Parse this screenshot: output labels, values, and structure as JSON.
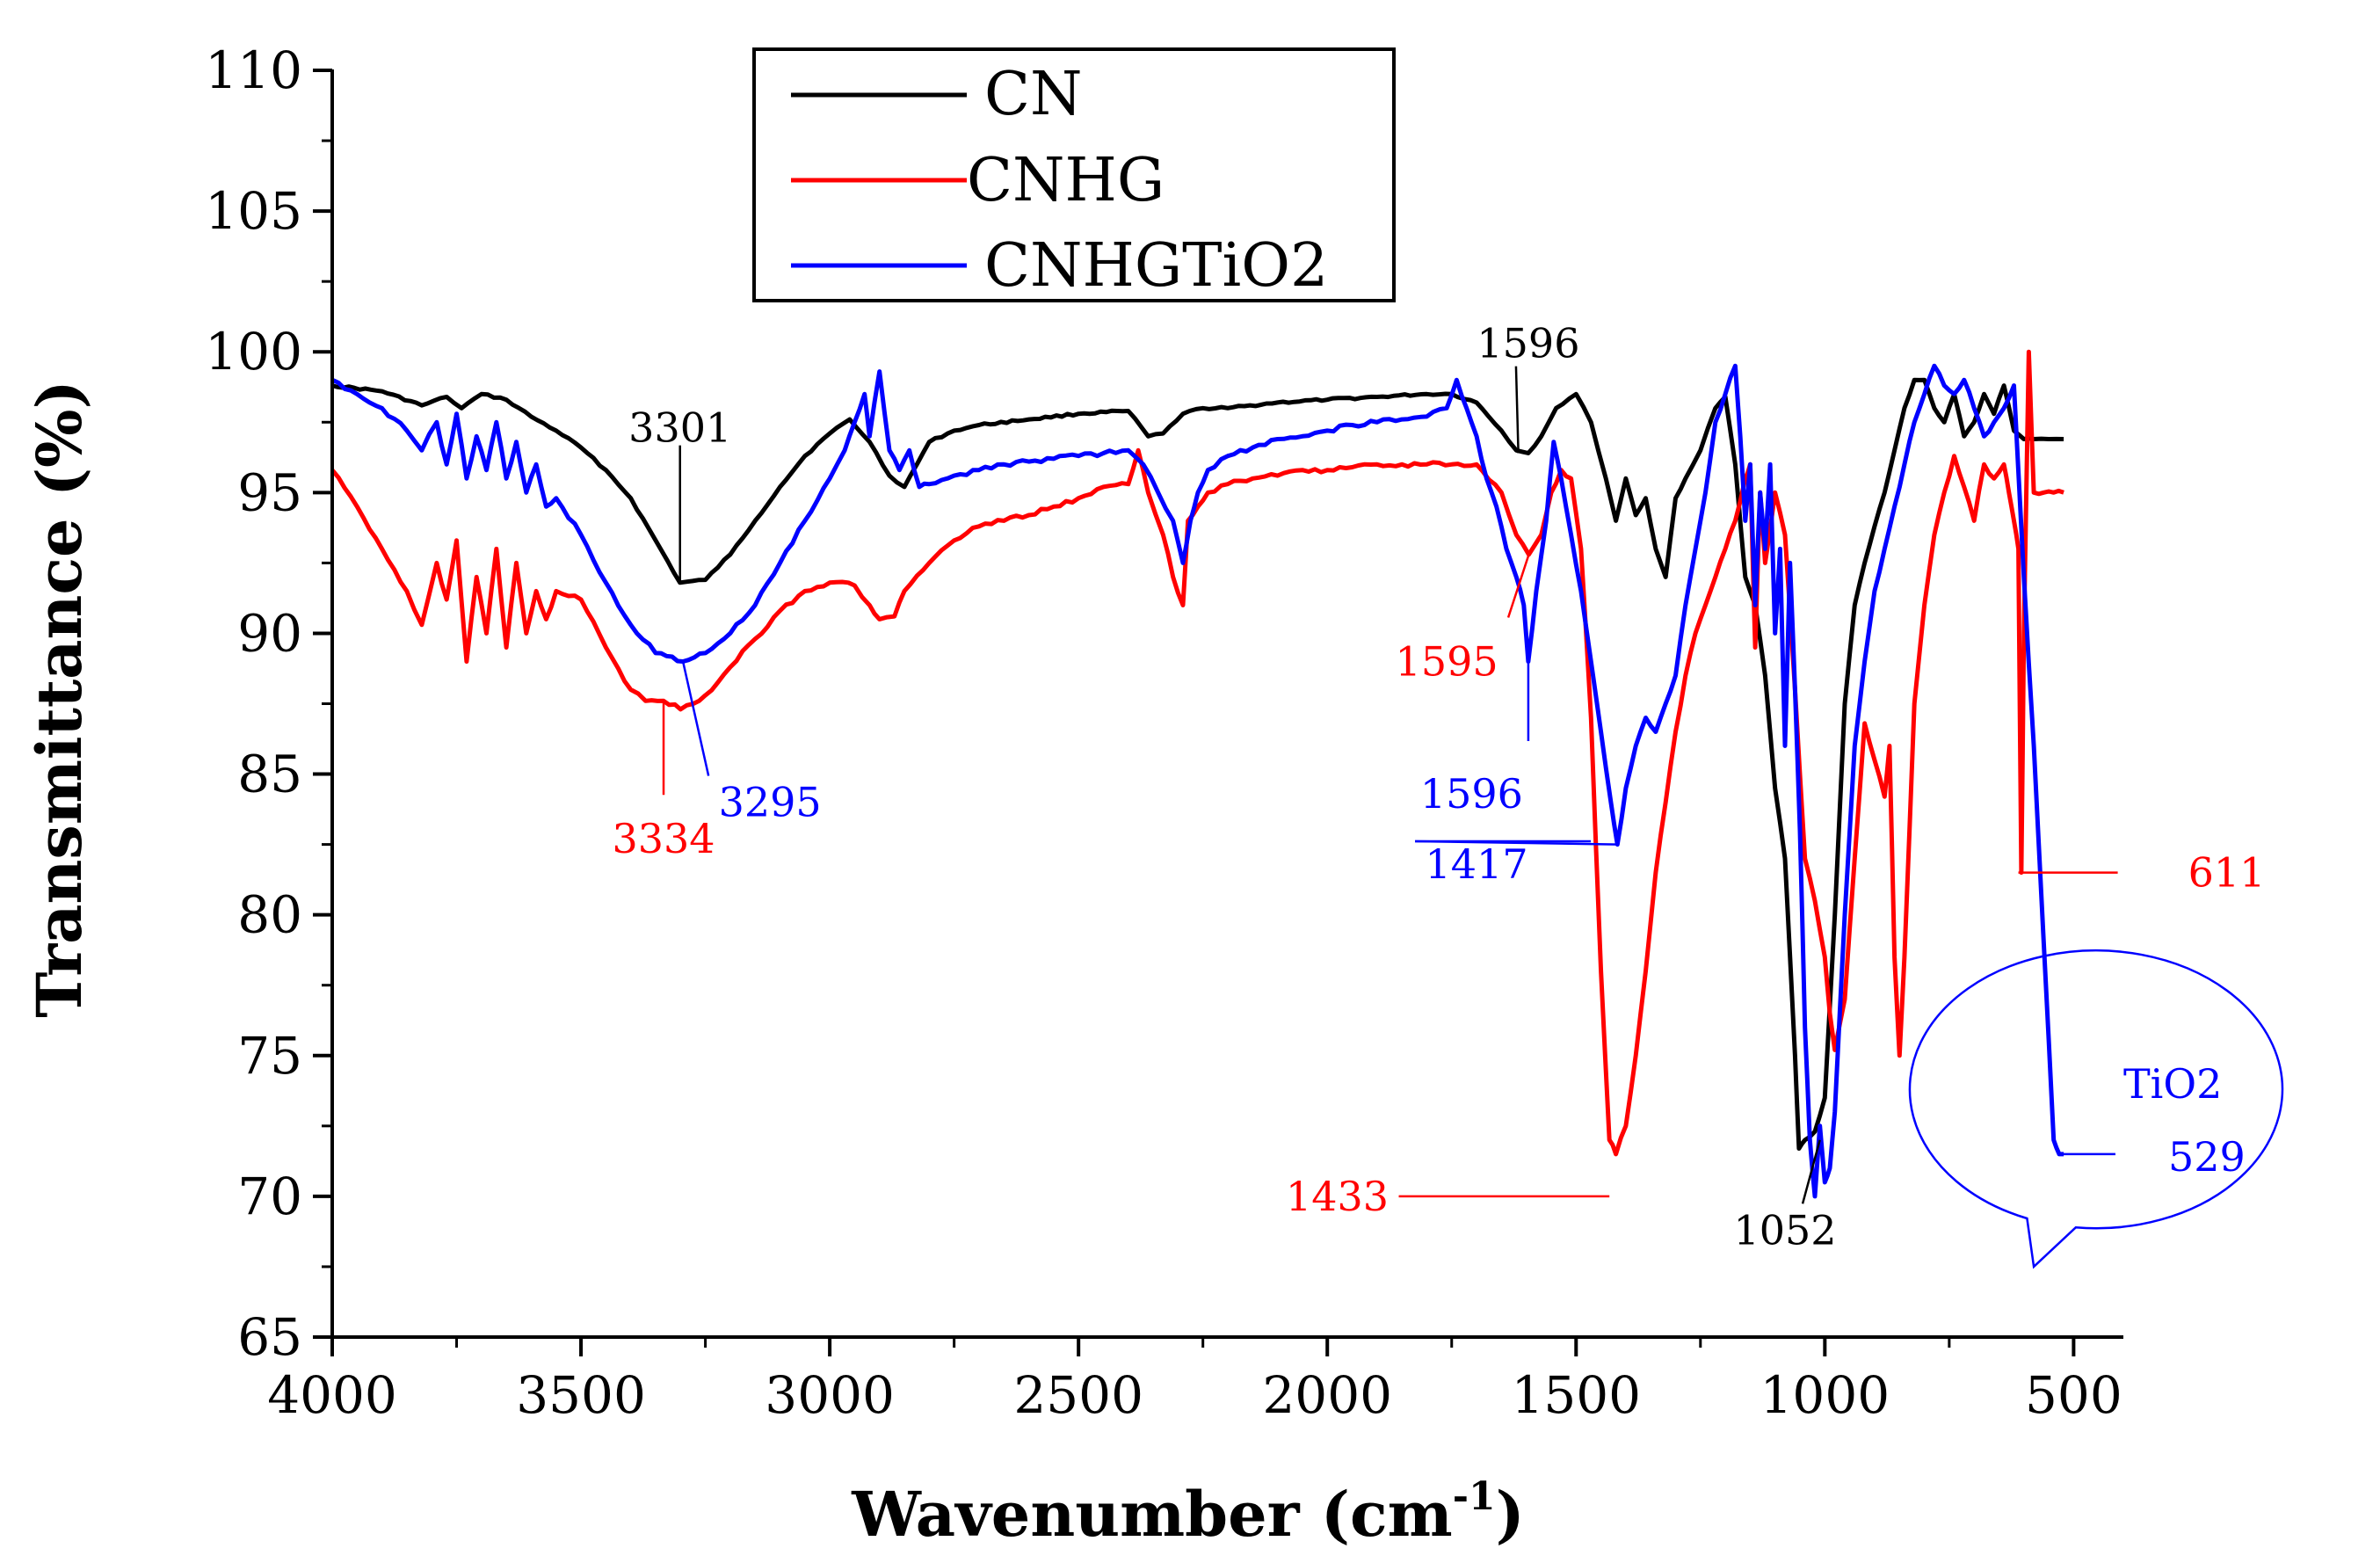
{
  "chart_data": {
    "type": "line",
    "xlabel": "Wavenumber (cm",
    "xlabel_sup": "-1",
    "xlabel_close": ")",
    "ylabel": "Transmittance (%)",
    "xlim": [
      4000,
      400
    ],
    "ylim": [
      65,
      110
    ],
    "xticks": [
      4000,
      3500,
      3000,
      2500,
      2000,
      1500,
      1000,
      500
    ],
    "yticks": [
      65,
      70,
      75,
      80,
      85,
      90,
      95,
      100,
      105,
      110
    ],
    "grid": false,
    "legend_position": "top-left",
    "series": [
      {
        "name": "CN",
        "color": "#000000",
        "x": [
          4000,
          3900,
          3820,
          3770,
          3740,
          3700,
          3650,
          3600,
          3550,
          3500,
          3450,
          3400,
          3350,
          3301,
          3250,
          3200,
          3150,
          3100,
          3050,
          3000,
          2960,
          2920,
          2880,
          2850,
          2800,
          2750,
          2700,
          2600,
          2500,
          2400,
          2360,
          2330,
          2290,
          2250,
          2200,
          2100,
          2000,
          1900,
          1800,
          1750,
          1700,
          1650,
          1620,
          1596,
          1570,
          1540,
          1500,
          1470,
          1440,
          1420,
          1400,
          1380,
          1360,
          1340,
          1320,
          1300,
          1280,
          1250,
          1220,
          1200,
          1180,
          1160,
          1140,
          1120,
          1100,
          1080,
          1060,
          1052,
          1040,
          1020,
          1000,
          980,
          960,
          940,
          920,
          900,
          880,
          860,
          840,
          820,
          800,
          780,
          760,
          740,
          720,
          700,
          680,
          660,
          640,
          620,
          600,
          580,
          550,
          520
        ],
        "y": [
          98.8,
          98.6,
          98.1,
          98.4,
          98.0,
          98.5,
          98.3,
          97.7,
          97.2,
          96.6,
          95.8,
          94.8,
          93.3,
          91.8,
          91.9,
          92.8,
          94.0,
          95.2,
          96.3,
          97.1,
          97.6,
          96.8,
          95.6,
          95.2,
          96.8,
          97.2,
          97.4,
          97.6,
          97.8,
          97.9,
          97.0,
          97.1,
          97.8,
          98.0,
          98.0,
          98.2,
          98.3,
          98.4,
          98.5,
          98.5,
          98.2,
          97.2,
          96.5,
          96.4,
          97.0,
          98.0,
          98.5,
          97.5,
          95.5,
          94.0,
          95.5,
          94.2,
          94.8,
          93.0,
          92.0,
          94.8,
          95.5,
          96.5,
          98.0,
          98.4,
          96.0,
          92.0,
          91.0,
          88.5,
          84.5,
          82.0,
          75.0,
          71.7,
          72.0,
          72.3,
          73.5,
          80.0,
          87.5,
          91.0,
          92.5,
          93.8,
          95.0,
          96.5,
          98.0,
          99.0,
          99.0,
          98.0,
          97.5,
          98.5,
          97.0,
          97.5,
          98.5,
          97.8,
          98.8,
          97.2,
          96.9,
          96.9,
          96.9,
          96.9
        ]
      },
      {
        "name": "CNHG",
        "color": "#ff0000",
        "x": [
          4000,
          3950,
          3900,
          3850,
          3820,
          3790,
          3770,
          3750,
          3730,
          3710,
          3690,
          3670,
          3650,
          3630,
          3610,
          3590,
          3570,
          3550,
          3500,
          3450,
          3400,
          3370,
          3334,
          3300,
          3250,
          3200,
          3150,
          3100,
          3050,
          3000,
          2950,
          2920,
          2900,
          2870,
          2850,
          2800,
          2750,
          2700,
          2650,
          2600,
          2550,
          2500,
          2450,
          2400,
          2380,
          2360,
          2330,
          2310,
          2290,
          2280,
          2260,
          2240,
          2200,
          2150,
          2100,
          2050,
          2000,
          1950,
          1900,
          1850,
          1800,
          1750,
          1700,
          1650,
          1620,
          1595,
          1570,
          1550,
          1530,
          1510,
          1490,
          1470,
          1450,
          1433,
          1420,
          1400,
          1380,
          1360,
          1340,
          1320,
          1300,
          1280,
          1260,
          1240,
          1220,
          1200,
          1180,
          1160,
          1150,
          1140,
          1130,
          1120,
          1100,
          1080,
          1060,
          1040,
          1020,
          1000,
          990,
          980,
          960,
          940,
          920,
          900,
          880,
          870,
          860,
          850,
          840,
          820,
          800,
          780,
          760,
          740,
          720,
          700,
          680,
          660,
          640,
          630,
          620,
          611,
          605,
          600,
          590,
          580,
          560,
          540,
          520
        ],
        "y": [
          95.8,
          94.5,
          93.0,
          91.5,
          90.3,
          92.5,
          91.2,
          93.3,
          89.0,
          92.0,
          90.0,
          93.0,
          89.5,
          92.5,
          90.0,
          91.5,
          90.5,
          91.5,
          91.2,
          89.5,
          88.0,
          87.6,
          87.6,
          87.3,
          87.8,
          88.8,
          89.8,
          90.8,
          91.5,
          91.8,
          91.7,
          91.0,
          90.5,
          90.6,
          91.5,
          92.5,
          93.3,
          93.8,
          94.0,
          94.2,
          94.5,
          94.8,
          95.2,
          95.3,
          96.5,
          95.0,
          93.5,
          92.0,
          91.0,
          94.0,
          94.5,
          95.0,
          95.3,
          95.5,
          95.6,
          95.8,
          95.8,
          95.9,
          96.0,
          96.0,
          96.0,
          96.0,
          96.0,
          95.0,
          93.5,
          92.8,
          93.5,
          95.0,
          95.8,
          95.5,
          93.0,
          87.0,
          78.0,
          72.0,
          71.5,
          72.5,
          75.0,
          78.0,
          81.5,
          84.0,
          86.5,
          88.5,
          90.0,
          91.0,
          92.0,
          93.0,
          94.0,
          95.5,
          96.0,
          89.5,
          95.0,
          92.5,
          95.0,
          93.5,
          88.0,
          82.0,
          80.5,
          78.5,
          76.5,
          75.2,
          77.0,
          82.0,
          86.8,
          85.5,
          84.2,
          86.0,
          78.5,
          75.0,
          78.5,
          87.5,
          91.0,
          93.5,
          95.0,
          96.3,
          95.2,
          94.0,
          96.0,
          95.5,
          96.0,
          95.0,
          94.0,
          93.0,
          81.5,
          90.0,
          100.0,
          95.0,
          95.0,
          95.0,
          95.0
        ]
      },
      {
        "name": "CNHGTiO2",
        "color": "#0000ff",
        "x": [
          4000,
          3950,
          3900,
          3850,
          3820,
          3790,
          3770,
          3750,
          3730,
          3710,
          3690,
          3670,
          3650,
          3630,
          3610,
          3590,
          3570,
          3550,
          3500,
          3450,
          3400,
          3350,
          3295,
          3250,
          3200,
          3150,
          3100,
          3050,
          3000,
          2970,
          2950,
          2930,
          2920,
          2900,
          2880,
          2860,
          2840,
          2820,
          2800,
          2750,
          2700,
          2650,
          2600,
          2550,
          2500,
          2450,
          2400,
          2370,
          2340,
          2310,
          2290,
          2275,
          2260,
          2240,
          2200,
          2150,
          2100,
          2050,
          2000,
          1950,
          1900,
          1850,
          1800,
          1760,
          1740,
          1720,
          1700,
          1680,
          1660,
          1640,
          1620,
          1605,
          1596,
          1580,
          1560,
          1545,
          1530,
          1510,
          1490,
          1470,
          1450,
          1430,
          1417,
          1400,
          1380,
          1360,
          1340,
          1320,
          1300,
          1280,
          1260,
          1240,
          1220,
          1200,
          1180,
          1170,
          1160,
          1150,
          1140,
          1130,
          1120,
          1110,
          1100,
          1090,
          1080,
          1070,
          1060,
          1050,
          1040,
          1030,
          1020,
          1010,
          1000,
          990,
          980,
          960,
          940,
          920,
          900,
          880,
          860,
          840,
          820,
          800,
          780,
          760,
          740,
          720,
          700,
          680,
          660,
          640,
          620,
          600,
          580,
          560,
          540,
          529,
          520
        ],
        "y": [
          99.0,
          98.5,
          98.0,
          97.2,
          96.5,
          97.5,
          96.0,
          97.8,
          95.5,
          97.0,
          95.8,
          97.5,
          95.5,
          96.8,
          95.0,
          96.0,
          94.5,
          94.8,
          93.5,
          91.8,
          90.3,
          89.3,
          89.0,
          89.3,
          90.0,
          91.0,
          92.5,
          94.0,
          95.5,
          96.5,
          97.5,
          98.5,
          97.0,
          99.3,
          96.5,
          95.8,
          96.5,
          95.2,
          95.3,
          95.6,
          95.8,
          96.0,
          96.1,
          96.2,
          96.3,
          96.4,
          96.5,
          96.0,
          95.0,
          94.0,
          92.5,
          94.0,
          95.0,
          95.8,
          96.3,
          96.6,
          96.9,
          97.0,
          97.2,
          97.4,
          97.5,
          97.6,
          97.7,
          98.0,
          99.0,
          98.0,
          97.0,
          95.5,
          94.5,
          93.0,
          92.0,
          91.0,
          89.0,
          91.5,
          94.0,
          96.8,
          95.5,
          93.5,
          91.5,
          89.0,
          86.5,
          84.0,
          82.5,
          84.5,
          86.0,
          87.0,
          86.5,
          87.5,
          88.5,
          91.0,
          93.0,
          95.0,
          97.5,
          98.5,
          99.5,
          97.0,
          94.0,
          96.0,
          91.0,
          95.0,
          93.0,
          96.0,
          90.0,
          93.0,
          86.0,
          92.5,
          88.0,
          83.0,
          76.0,
          72.0,
          70.0,
          72.5,
          70.5,
          71.0,
          73.0,
          80.0,
          86.0,
          89.0,
          91.5,
          93.0,
          94.5,
          96.0,
          97.5,
          98.5,
          99.5,
          98.8,
          98.5,
          99.0,
          98.0,
          97.0,
          97.5,
          98.0,
          98.8,
          92.0,
          86.0,
          79.0,
          72.0,
          71.5,
          71.5
        ]
      }
    ],
    "annotations": [
      {
        "text": "3301",
        "color": "#000000",
        "x": 3301,
        "y": 91.8,
        "label_x": 3301,
        "label_y": 97.3
      },
      {
        "text": "3334",
        "color": "#ff0000",
        "x": 3334,
        "y": 87.6,
        "label_x": 3334,
        "label_y": 82.7
      },
      {
        "text": "3295",
        "color": "#0000ff",
        "x": 3295,
        "y": 89.0,
        "label_x": 3120,
        "label_y": 84.0
      },
      {
        "text": "1596",
        "color": "#000000",
        "x": 1616,
        "y": 96.4,
        "label_x": 1596,
        "label_y": 100.3
      },
      {
        "text": "1595",
        "color": "#ff0000",
        "x": 1595,
        "y": 92.8,
        "label_x": 1760,
        "label_y": 89.0
      },
      {
        "text": "1596",
        "color": "#0000ff",
        "x": 1596,
        "y": 89.0,
        "label_x": 1710,
        "label_y": 84.3
      },
      {
        "text": "1417",
        "color": "#0000ff",
        "x": 1417,
        "y": 82.5,
        "label_x": 1700,
        "label_y": 81.8
      },
      {
        "text": "1433",
        "color": "#ff0000",
        "x": 1433,
        "y": 70.0,
        "label_x": 1980,
        "label_y": 70.0
      },
      {
        "text": "1052",
        "color": "#000000",
        "x": 1010,
        "y": 72.0,
        "label_x": 1080,
        "label_y": 68.8
      },
      {
        "text": "611",
        "color": "#ff0000",
        "x": 611,
        "y": 81.5,
        "label_x": 270,
        "label_y": 81.5
      },
      {
        "text": "529",
        "color": "#0000ff",
        "x": 529,
        "y": 71.5,
        "label_x": 310,
        "label_y": 71.4
      },
      {
        "text": "TiO2",
        "color": "#0000ff",
        "label_x": 400,
        "label_y": 74.0
      }
    ]
  }
}
